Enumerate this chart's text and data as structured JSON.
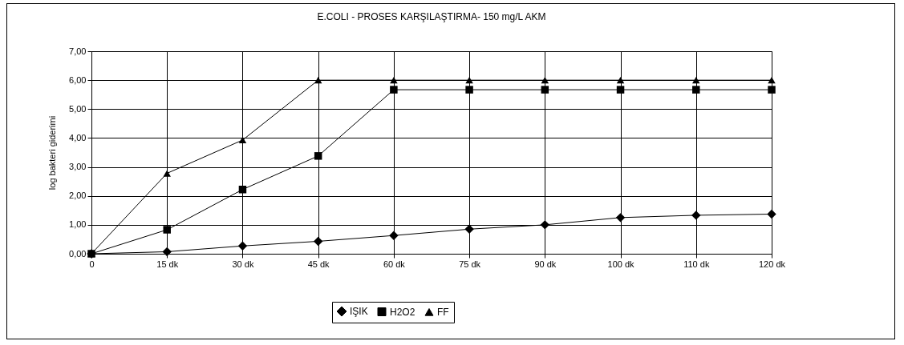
{
  "chart_data": {
    "type": "line",
    "title": "E.COLI - PROSES KARŞILAŞTIRMA- 150 mg/L AKM",
    "ylabel": "log bakteri giderimi",
    "categories": [
      "0",
      "15 dk",
      "30 dk",
      "45 dk",
      "60 dk",
      "75 dk",
      "90 dk",
      "100 dk",
      "110 dk",
      "120 dk"
    ],
    "series": [
      {
        "name": "IŞIK",
        "color": "#000000",
        "marker": "diamond",
        "values": [
          0,
          0.07,
          0.27,
          0.43,
          0.63,
          0.85,
          1.0,
          1.25,
          1.33,
          1.37
        ]
      },
      {
        "name": "H2O2",
        "color": "#000000",
        "marker": "square",
        "values": [
          0,
          0.83,
          2.22,
          3.38,
          5.67,
          5.67,
          5.67,
          5.67,
          5.67,
          5.67
        ]
      },
      {
        "name": "FF",
        "color": "#000000",
        "marker": "triangle",
        "values": [
          0,
          2.78,
          3.93,
          6.0,
          6.0,
          6.0,
          6.0,
          6.0,
          6.0,
          6.0
        ]
      }
    ],
    "ylim": [
      0,
      7
    ],
    "yticks": [
      {
        "value": 0,
        "label": "0,00"
      },
      {
        "value": 1,
        "label": "1,00"
      },
      {
        "value": 2,
        "label": "2,00"
      },
      {
        "value": 3,
        "label": "3,00"
      },
      {
        "value": 4,
        "label": "4,00"
      },
      {
        "value": 5,
        "label": "5,00"
      },
      {
        "value": 6,
        "label": "6,00"
      },
      {
        "value": 7,
        "label": "7,00"
      }
    ],
    "grid": true,
    "legend": "bottom",
    "line_style": "solid"
  }
}
